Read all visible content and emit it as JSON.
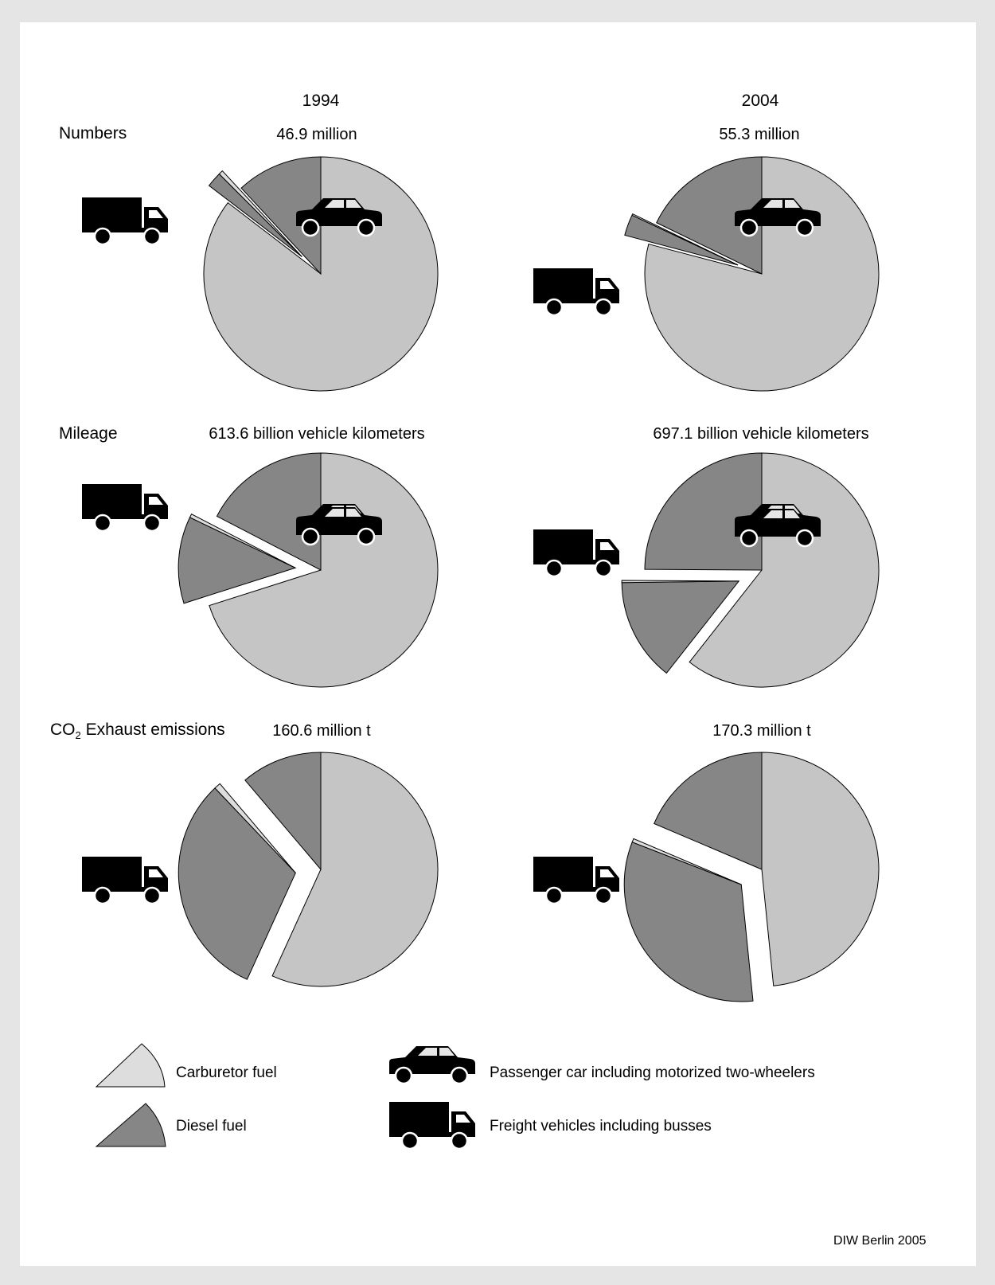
{
  "colors": {
    "page_background": "#e5e5e5",
    "panel_background": "#ffffff",
    "petrol_passenger": "#c5c5c5",
    "diesel": "#868686",
    "petrol_freight": "#dddddd",
    "icons": "#000000"
  },
  "columns": [
    "1994",
    "2004"
  ],
  "rows": {
    "numbers": "Numbers",
    "mileage": "Mileage",
    "co2_prefix": "CO",
    "co2_subscript": "2",
    "co2_suffix": " Exhaust emissions"
  },
  "totals": {
    "numbers_1994": "46.9 million",
    "numbers_2004": "55.3 million",
    "mileage_1994": "613.6 billion vehicle kilometers",
    "mileage_2004": "697.1 billion vehicle kilometers",
    "co2_1994": "160.6 million t",
    "co2_2004": "170.3 million t"
  },
  "legend": {
    "carburetor": "Carburetor fuel",
    "diesel": "Diesel fuel",
    "passenger": "Passenger car including motorized two-wheelers",
    "freight": "Freight vehicles including busses"
  },
  "icons": [
    "truck-icon",
    "car-icon",
    "carburetor-wedge-icon",
    "diesel-wedge-icon"
  ],
  "source": "DIW Berlin 2005",
  "chart_data": [
    {
      "type": "pie",
      "title": "Numbers 1994",
      "total": "46.9 million",
      "categories": [
        "Passenger car – carburetor fuel",
        "Passenger car – diesel fuel",
        "Freight vehicles – carburetor fuel",
        "Freight vehicles – diesel fuel"
      ],
      "values": [
        85.4,
        11.9,
        0.6,
        2.1
      ]
    },
    {
      "type": "pie",
      "title": "Numbers 2004",
      "total": "55.3 million",
      "categories": [
        "Passenger car – carburetor fuel",
        "Passenger car – diesel fuel",
        "Freight vehicles – carburetor fuel",
        "Freight vehicles – diesel fuel"
      ],
      "values": [
        79.1,
        17.8,
        0.2,
        2.9
      ]
    },
    {
      "type": "pie",
      "title": "Mileage 1994",
      "total": "613.6 billion vehicle kilometers",
      "categories": [
        "Passenger car – carburetor fuel",
        "Passenger car – diesel fuel",
        "Freight vehicles – carburetor fuel",
        "Freight vehicles – diesel fuel"
      ],
      "values": [
        70.1,
        17.4,
        0.5,
        12.0
      ]
    },
    {
      "type": "pie",
      "title": "Mileage 2004",
      "total": "697.1 billion vehicle kilometers",
      "categories": [
        "Passenger car – carburetor fuel",
        "Passenger car – diesel fuel",
        "Freight vehicles – carburetor fuel",
        "Freight vehicles – diesel fuel"
      ],
      "values": [
        60.6,
        24.9,
        0.3,
        14.2
      ]
    },
    {
      "type": "pie",
      "title": "CO2 Exhaust emissions 1994",
      "total": "160.6 million t",
      "categories": [
        "Passenger car – carburetor fuel",
        "Passenger car – diesel fuel",
        "Freight vehicles – carburetor fuel",
        "Freight vehicles – diesel fuel"
      ],
      "values": [
        56.8,
        11.2,
        0.9,
        31.1
      ]
    },
    {
      "type": "pie",
      "title": "CO2 Exhaust emissions 2004",
      "total": "170.3 million t",
      "categories": [
        "Passenger car – carburetor fuel",
        "Passenger car – diesel fuel",
        "Freight vehicles – carburetor fuel",
        "Freight vehicles – diesel fuel"
      ],
      "values": [
        48.4,
        18.6,
        0.5,
        32.5
      ]
    }
  ]
}
